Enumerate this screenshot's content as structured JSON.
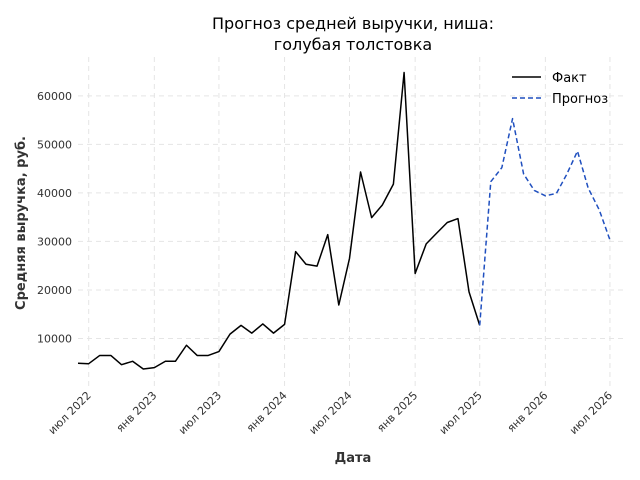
{
  "chart_data": {
    "type": "line",
    "title_line1": "Прогноз средней выручки, ниша:",
    "title_line2": "голубая толстовка",
    "xlabel": "Дата",
    "ylabel": "Средняя выручка, руб.",
    "ylim": [
      0,
      68000
    ],
    "xlim": [
      "2022-06-01",
      "2026-08-15"
    ],
    "y_ticks": [
      10000,
      20000,
      30000,
      40000,
      50000,
      60000
    ],
    "x_ticks": [
      {
        "date": "2022-07-01",
        "label": "июл 2022"
      },
      {
        "date": "2023-01-01",
        "label": "янв 2023"
      },
      {
        "date": "2023-07-01",
        "label": "июл 2023"
      },
      {
        "date": "2024-01-01",
        "label": "янв 2024"
      },
      {
        "date": "2024-07-01",
        "label": "июл 2024"
      },
      {
        "date": "2025-01-01",
        "label": "янв 2025"
      },
      {
        "date": "2025-07-01",
        "label": "июл 2025"
      },
      {
        "date": "2026-01-01",
        "label": "янв 2026"
      },
      {
        "date": "2026-07-01",
        "label": "июл 2026"
      }
    ],
    "grid": true,
    "legend_position": "top-right",
    "series": [
      {
        "name": "Факт",
        "color": "#000000",
        "style": "solid",
        "points": [
          [
            "2022-06-01",
            4900
          ],
          [
            "2022-07-01",
            4800
          ],
          [
            "2022-08-01",
            6500
          ],
          [
            "2022-09-01",
            6500
          ],
          [
            "2022-10-01",
            4600
          ],
          [
            "2022-11-01",
            5300
          ],
          [
            "2022-12-01",
            3700
          ],
          [
            "2023-01-01",
            4000
          ],
          [
            "2023-02-01",
            5300
          ],
          [
            "2023-03-01",
            5300
          ],
          [
            "2023-04-01",
            8600
          ],
          [
            "2023-05-01",
            6500
          ],
          [
            "2023-06-01",
            6500
          ],
          [
            "2023-07-01",
            7300
          ],
          [
            "2023-08-01",
            10900
          ],
          [
            "2023-09-01",
            12700
          ],
          [
            "2023-10-01",
            11100
          ],
          [
            "2023-11-01",
            13000
          ],
          [
            "2023-12-01",
            11100
          ],
          [
            "2024-01-01",
            12900
          ],
          [
            "2024-02-01",
            27900
          ],
          [
            "2024-03-01",
            25300
          ],
          [
            "2024-04-01",
            24900
          ],
          [
            "2024-05-01",
            31400
          ],
          [
            "2024-06-01",
            16900
          ],
          [
            "2024-07-01",
            26500
          ],
          [
            "2024-08-01",
            44300
          ],
          [
            "2024-09-01",
            34900
          ],
          [
            "2024-10-01",
            37500
          ],
          [
            "2024-11-01",
            41800
          ],
          [
            "2024-12-01",
            64800
          ],
          [
            "2025-01-01",
            23400
          ],
          [
            "2025-02-01",
            29500
          ],
          [
            "2025-03-01",
            31600
          ],
          [
            "2025-04-01",
            33900
          ],
          [
            "2025-05-01",
            34700
          ],
          [
            "2025-06-01",
            19600
          ],
          [
            "2025-07-01",
            12700
          ]
        ]
      },
      {
        "name": "Прогноз",
        "color": "#1f4fbf",
        "style": "dashed",
        "points": [
          [
            "2025-07-01",
            12700
          ],
          [
            "2025-08-01",
            42300
          ],
          [
            "2025-09-01",
            45200
          ],
          [
            "2025-10-01",
            55300
          ],
          [
            "2025-11-01",
            43900
          ],
          [
            "2025-12-01",
            40500
          ],
          [
            "2026-01-01",
            39400
          ],
          [
            "2026-02-01",
            39900
          ],
          [
            "2026-03-01",
            43700
          ],
          [
            "2026-04-01",
            48600
          ],
          [
            "2026-05-01",
            41000
          ],
          [
            "2026-06-01",
            36500
          ],
          [
            "2026-07-01",
            30300
          ]
        ]
      }
    ]
  }
}
